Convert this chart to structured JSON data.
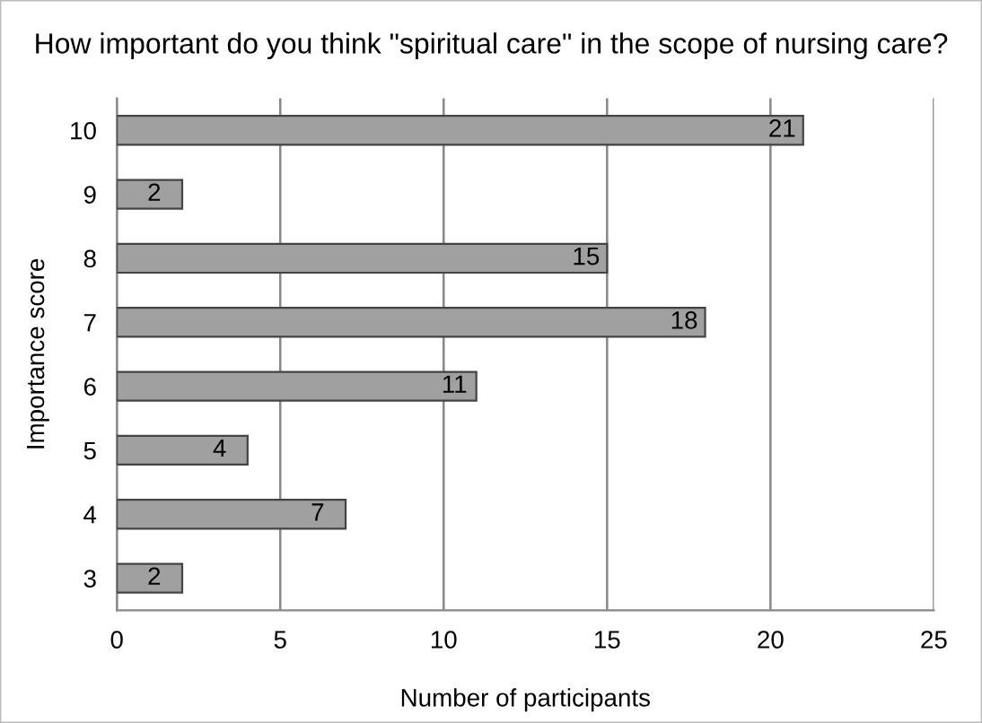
{
  "chart_data": {
    "type": "bar",
    "orientation": "horizontal",
    "title": "How important do you think \"spiritual care\" in the scope of nursing care?",
    "xlabel": "Number of participants",
    "ylabel": "Importance score",
    "categories": [
      "10",
      "9",
      "8",
      "7",
      "6",
      "5",
      "4",
      "3"
    ],
    "values": [
      21,
      2,
      15,
      18,
      11,
      4,
      7,
      2
    ],
    "color": "#a0a0a0",
    "xlim": [
      0,
      25
    ],
    "xticks": [
      0,
      5,
      10,
      15,
      20,
      25
    ],
    "grid": "x",
    "data_labels": true
  }
}
